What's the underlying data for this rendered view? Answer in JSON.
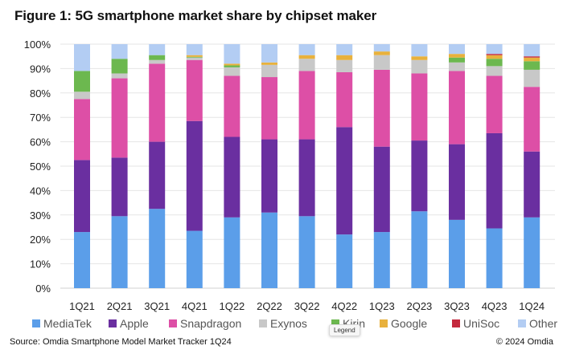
{
  "page": {
    "title": "Figure 1: 5G smartphone market share by chipset maker",
    "source": "Source: Omdia Smartphone Model Market Tracker 1Q24",
    "copyright": "© 2024 Omdia",
    "tooltip": "Legend"
  },
  "chart_data": {
    "type": "bar",
    "stacked": true,
    "title": "Figure 1: 5G smartphone market share by chipset maker",
    "xlabel": "",
    "ylabel": "",
    "ylim": [
      0,
      100
    ],
    "y_ticks": [
      "0%",
      "10%",
      "20%",
      "30%",
      "40%",
      "50%",
      "60%",
      "70%",
      "80%",
      "90%",
      "100%"
    ],
    "grid": true,
    "legend_position": "bottom",
    "categories": [
      "1Q21",
      "2Q21",
      "3Q21",
      "4Q21",
      "1Q22",
      "2Q22",
      "3Q22",
      "4Q22",
      "1Q23",
      "2Q23",
      "3Q23",
      "4Q23",
      "1Q24"
    ],
    "series": [
      {
        "name": "MediaTek",
        "color": "#5b9ee9",
        "values": [
          23,
          29.5,
          32.5,
          23.5,
          29,
          31,
          29.5,
          22,
          23,
          31.5,
          28,
          24.5,
          29
        ]
      },
      {
        "name": "Apple",
        "color": "#6a2fa0",
        "values": [
          29.5,
          24,
          27.5,
          45,
          33,
          30,
          31.5,
          44,
          35,
          29,
          31,
          39,
          27
        ]
      },
      {
        "name": "Snapdragon",
        "color": "#dd4fa6",
        "values": [
          25,
          32.5,
          32,
          25,
          25,
          25.5,
          28,
          22.5,
          31.5,
          27.5,
          30,
          23.5,
          26.5
        ]
      },
      {
        "name": "Exynos",
        "color": "#c8c8c8",
        "values": [
          3,
          2,
          1.5,
          1,
          3.5,
          5,
          5,
          5,
          6,
          5.5,
          3.5,
          4,
          7
        ]
      },
      {
        "name": "Kirin",
        "color": "#6cb84f",
        "values": [
          8.5,
          6,
          2,
          0.3,
          0.8,
          0,
          0,
          0,
          0,
          0,
          2,
          3,
          3.5
        ]
      },
      {
        "name": "Google",
        "color": "#e8b13d",
        "values": [
          0,
          0,
          0,
          0.7,
          0.7,
          1,
          1.5,
          2,
          1.5,
          1.5,
          1.5,
          1.5,
          1.5
        ]
      },
      {
        "name": "UniSoc",
        "color": "#c4293e",
        "values": [
          0,
          0,
          0,
          0,
          0,
          0,
          0,
          0,
          0,
          0,
          0,
          0.5,
          0.5
        ]
      },
      {
        "name": "Other",
        "color": "#b3cdf3",
        "values": [
          11,
          6,
          4.5,
          4.5,
          8,
          7.5,
          4.5,
          4.5,
          3,
          5,
          4,
          4,
          5
        ]
      }
    ]
  }
}
